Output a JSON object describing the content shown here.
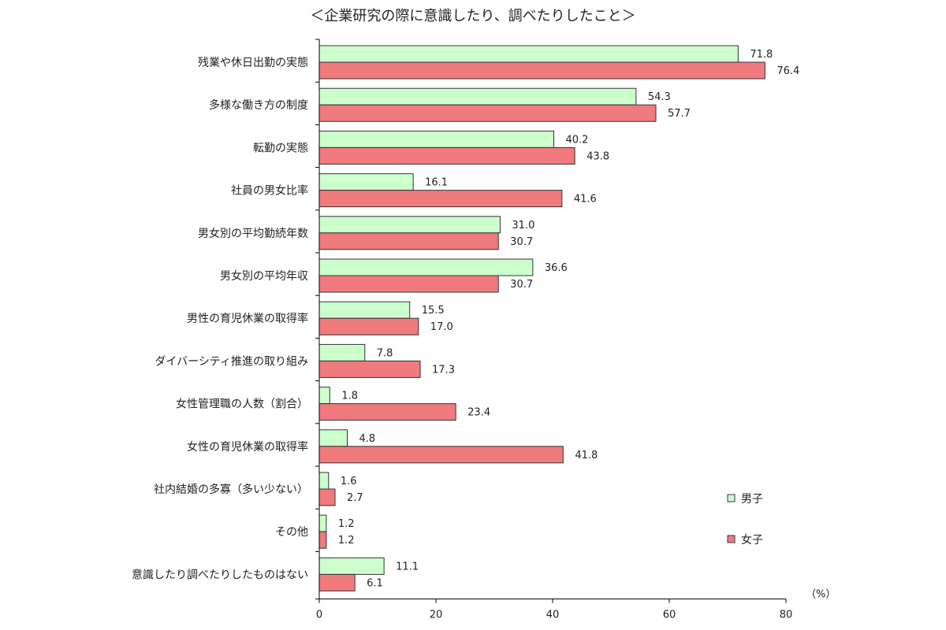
{
  "chart_data": {
    "type": "bar",
    "orientation": "horizontal",
    "title": "＜企業研究の際に意識したり、調べたりしたこと＞",
    "unit": "（%）",
    "xlim": [
      0,
      80
    ],
    "xticks": [
      "0",
      "20",
      "40",
      "60",
      "80"
    ],
    "grid": false,
    "legend_position": "bottom-right",
    "categories": [
      "残業や休日出勤の実態",
      "多様な働き方の制度",
      "転勤の実態",
      "社員の男女比率",
      "男女別の平均勤続年数",
      "男女別の平均年収",
      "男性の育児休業の取得率",
      "ダイバーシティ推進の取り組み",
      "女性管理職の人数（割合）",
      "女性の育児休業の取得率",
      "社内結婚の多寡（多い少ない）",
      "その他",
      "意識したり調べたりしたものはない"
    ],
    "series": [
      {
        "name": "男子",
        "color": "#ccffcc",
        "values": [
          71.8,
          54.3,
          40.2,
          16.1,
          31.0,
          36.6,
          15.5,
          7.8,
          1.8,
          4.8,
          1.6,
          1.2,
          11.1
        ],
        "labels": [
          "71.8",
          "54.3",
          "40.2",
          "16.1",
          "31.0",
          "36.6",
          "15.5",
          "7.8",
          "1.8",
          "4.8",
          "1.6",
          "1.2",
          "11.1"
        ]
      },
      {
        "name": "女子",
        "color": "#f07a7e",
        "values": [
          76.4,
          57.7,
          43.8,
          41.6,
          30.7,
          30.7,
          17.0,
          17.3,
          23.4,
          41.8,
          2.7,
          1.2,
          6.1
        ],
        "labels": [
          "76.4",
          "57.7",
          "43.8",
          "41.6",
          "30.7",
          "30.7",
          "17.0",
          "17.3",
          "23.4",
          "41.8",
          "2.7",
          "1.2",
          "6.1"
        ]
      }
    ]
  }
}
